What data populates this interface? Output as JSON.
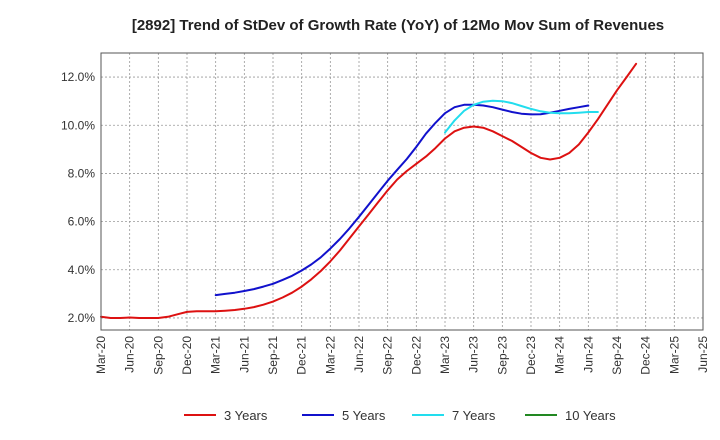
{
  "chart_data": {
    "type": "line",
    "title": "[2892]  Trend of StDev of Growth Rate (YoY) of 12Mo Mov Sum of Revenues",
    "xlabel": "",
    "ylabel": "",
    "ylim": [
      1.5,
      13.0
    ],
    "yticks": [
      2.0,
      4.0,
      6.0,
      8.0,
      10.0,
      12.0
    ],
    "ytick_labels": [
      "2.0%",
      "4.0%",
      "6.0%",
      "8.0%",
      "10.0%",
      "12.0%"
    ],
    "x_tick_labels": [
      "Mar-20",
      "Jun-20",
      "Sep-20",
      "Dec-20",
      "Mar-21",
      "Jun-21",
      "Sep-21",
      "Dec-21",
      "Mar-22",
      "Jun-22",
      "Sep-22",
      "Dec-22",
      "Mar-23",
      "Jun-23",
      "Sep-23",
      "Dec-23",
      "Mar-24",
      "Jun-24",
      "Sep-24",
      "Dec-24",
      "Mar-25",
      "Jun-25"
    ],
    "grid": true,
    "legend_position": "bottom",
    "series": [
      {
        "name": "3 Years",
        "color": "#dd1111",
        "start_index": 0,
        "values": [
          2.05,
          2.0,
          2.0,
          2.02,
          2.0,
          2.0,
          2.0,
          2.05,
          2.15,
          2.25,
          2.28,
          2.28,
          2.28,
          2.3,
          2.33,
          2.38,
          2.45,
          2.55,
          2.68,
          2.85,
          3.05,
          3.3,
          3.6,
          3.95,
          4.35,
          4.8,
          5.3,
          5.8,
          6.3,
          6.8,
          7.3,
          7.75,
          8.1,
          8.4,
          8.7,
          9.05,
          9.45,
          9.75,
          9.9,
          9.95,
          9.9,
          9.75,
          9.55,
          9.35,
          9.1,
          8.85,
          8.65,
          8.58,
          8.65,
          8.85,
          9.2,
          9.7,
          10.25,
          10.85,
          11.45,
          12.0,
          12.55
        ]
      },
      {
        "name": "5 Years",
        "color": "#1111cc",
        "start_index": 12,
        "values": [
          2.95,
          3.0,
          3.05,
          3.12,
          3.2,
          3.3,
          3.42,
          3.58,
          3.75,
          3.97,
          4.22,
          4.52,
          4.88,
          5.28,
          5.72,
          6.2,
          6.7,
          7.2,
          7.7,
          8.15,
          8.6,
          9.1,
          9.65,
          10.1,
          10.5,
          10.75,
          10.85,
          10.85,
          10.82,
          10.75,
          10.65,
          10.55,
          10.48,
          10.45,
          10.46,
          10.52,
          10.6,
          10.68,
          10.75,
          10.82
        ]
      },
      {
        "name": "7 Years",
        "color": "#22ddee",
        "start_index": 36,
        "values": [
          9.7,
          10.2,
          10.6,
          10.85,
          10.98,
          11.02,
          11.0,
          10.92,
          10.8,
          10.68,
          10.58,
          10.52,
          10.5,
          10.5,
          10.52,
          10.55,
          10.55
        ]
      },
      {
        "name": "10 Years",
        "color": "#228822",
        "start_index": 0,
        "values": []
      }
    ]
  }
}
